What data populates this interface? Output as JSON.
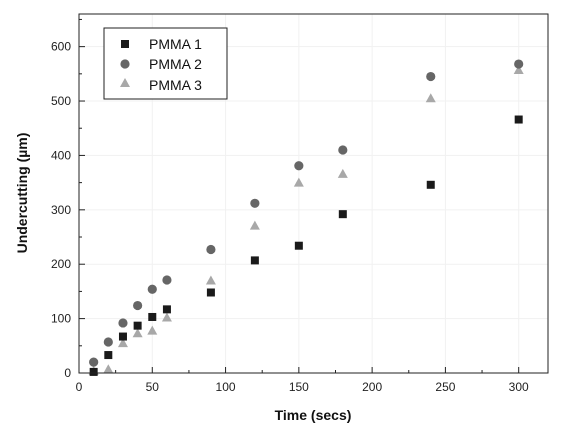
{
  "chart_data": {
    "type": "scatter",
    "xlabel": "Time (secs)",
    "ylabel": "Undercutting (µm)",
    "xlim": [
      0,
      320
    ],
    "ylim": [
      0,
      660
    ],
    "xticks": [
      0,
      50,
      100,
      150,
      200,
      250,
      300
    ],
    "yticks": [
      0,
      100,
      200,
      300,
      400,
      500,
      600
    ],
    "x_tick_labels": [
      "0",
      "50",
      "100",
      "150",
      "200",
      "250",
      "300"
    ],
    "y_tick_labels": [
      "0",
      "100",
      "200",
      "300",
      "400",
      "500",
      "600"
    ],
    "grid": true,
    "legend_position": "top-left",
    "series": [
      {
        "name": "PMMA 1",
        "marker": "square",
        "color": "#1a1a1a",
        "x": [
          10,
          20,
          30,
          40,
          50,
          60,
          90,
          120,
          150,
          180,
          240,
          300
        ],
        "y": [
          2,
          33,
          67,
          87,
          103,
          117,
          148,
          207,
          234,
          292,
          346,
          466
        ]
      },
      {
        "name": "PMMA 2",
        "marker": "circle",
        "color": "#666666",
        "x": [
          10,
          20,
          30,
          40,
          50,
          60,
          90,
          120,
          150,
          180,
          240,
          300
        ],
        "y": [
          20,
          57,
          92,
          124,
          154,
          171,
          227,
          312,
          381,
          410,
          545,
          568
        ]
      },
      {
        "name": "PMMA 3",
        "marker": "triangle",
        "color": "#a8a8a8",
        "x": [
          10,
          20,
          30,
          40,
          50,
          60,
          90,
          120,
          150,
          180,
          240,
          300
        ],
        "y": [
          4,
          7,
          55,
          73,
          78,
          102,
          170,
          271,
          350,
          366,
          505,
          557
        ]
      }
    ]
  }
}
